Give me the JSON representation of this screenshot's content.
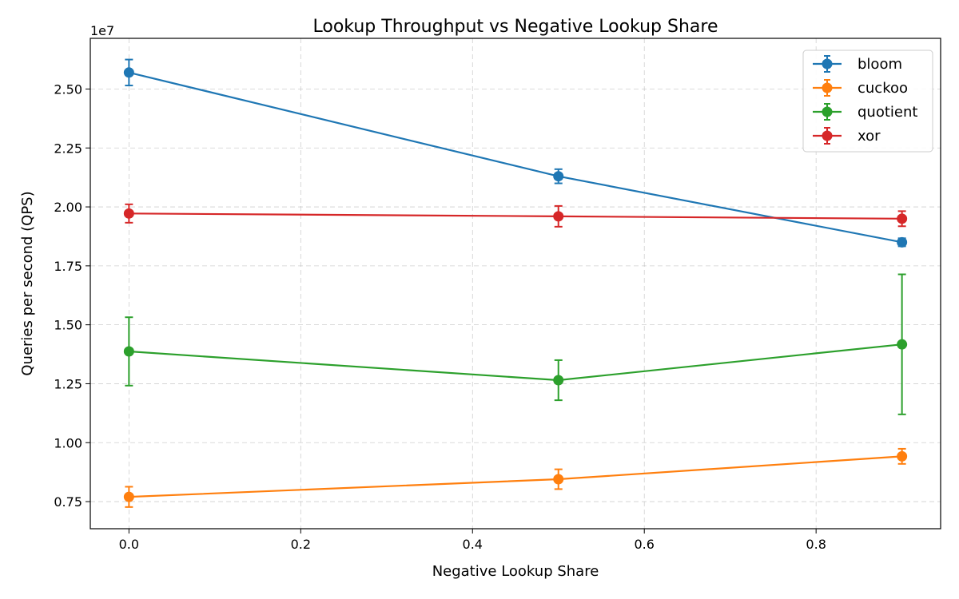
{
  "chart_data": {
    "type": "line",
    "title": "Lookup Throughput vs Negative Lookup Share",
    "xlabel": "Negative Lookup Share",
    "ylabel": "Queries per second (QPS)",
    "y_offset_label": "1e7",
    "xlim": [
      -0.045,
      0.945
    ],
    "ylim": [
      6350000,
      27150000
    ],
    "xticks": [
      0.0,
      0.2,
      0.4,
      0.6,
      0.8
    ],
    "xtick_labels": [
      "0.0",
      "0.2",
      "0.4",
      "0.6",
      "0.8"
    ],
    "yticks": [
      7500000,
      10000000,
      12500000,
      15000000,
      17500000,
      20000000,
      22500000,
      25000000
    ],
    "ytick_labels": [
      "0.75",
      "1.00",
      "1.25",
      "1.50",
      "1.75",
      "2.00",
      "2.25",
      "2.50"
    ],
    "grid": true,
    "legend_position": "top-right",
    "x": [
      0.0,
      0.5,
      0.9
    ],
    "series": [
      {
        "name": "bloom",
        "color": "#1f77b4",
        "values": [
          25700000,
          21300000,
          18500000
        ],
        "errors": [
          550000,
          300000,
          170000
        ]
      },
      {
        "name": "cuckoo",
        "color": "#ff7f0e",
        "values": [
          7700000,
          8450000,
          9420000
        ],
        "errors": [
          430000,
          420000,
          320000
        ]
      },
      {
        "name": "quotient",
        "color": "#2ca02c",
        "values": [
          13870000,
          12650000,
          14170000
        ],
        "errors": [
          1450000,
          850000,
          2970000
        ]
      },
      {
        "name": "xor",
        "color": "#d62728",
        "values": [
          19720000,
          19600000,
          19500000
        ],
        "errors": [
          390000,
          440000,
          320000
        ]
      }
    ]
  }
}
